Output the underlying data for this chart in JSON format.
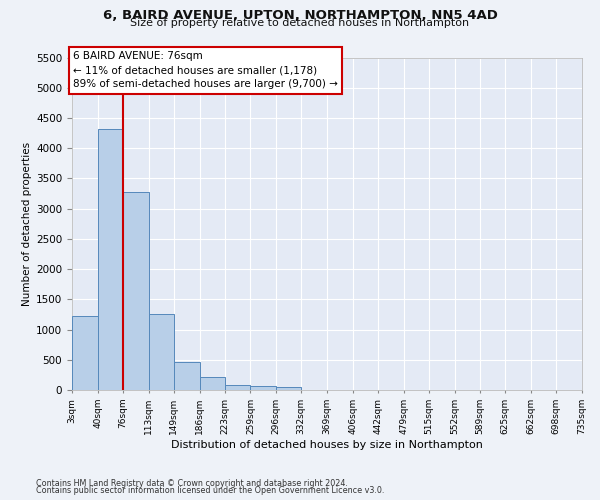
{
  "title1": "6, BAIRD AVENUE, UPTON, NORTHAMPTON, NN5 4AD",
  "title2": "Size of property relative to detached houses in Northampton",
  "xlabel": "Distribution of detached houses by size in Northampton",
  "ylabel": "Number of detached properties",
  "footnote1": "Contains HM Land Registry data © Crown copyright and database right 2024.",
  "footnote2": "Contains public sector information licensed under the Open Government Licence v3.0.",
  "annotation_title": "6 BAIRD AVENUE: 76sqm",
  "annotation_line1": "← 11% of detached houses are smaller (1,178)",
  "annotation_line2": "89% of semi-detached houses are larger (9,700) →",
  "bar_color": "#b8cfe8",
  "bar_edge_color": "#5588bb",
  "red_line_x": 76,
  "categories": [
    "3sqm",
    "40sqm",
    "76sqm",
    "113sqm",
    "149sqm",
    "186sqm",
    "223sqm",
    "259sqm",
    "296sqm",
    "332sqm",
    "369sqm",
    "406sqm",
    "442sqm",
    "479sqm",
    "515sqm",
    "552sqm",
    "589sqm",
    "625sqm",
    "662sqm",
    "698sqm",
    "735sqm"
  ],
  "bin_edges": [
    3,
    40,
    76,
    113,
    149,
    186,
    223,
    259,
    296,
    332,
    369,
    406,
    442,
    479,
    515,
    552,
    589,
    625,
    662,
    698,
    735
  ],
  "values": [
    1220,
    4320,
    3280,
    1260,
    470,
    215,
    90,
    65,
    50,
    0,
    0,
    0,
    0,
    0,
    0,
    0,
    0,
    0,
    0,
    0
  ],
  "ylim": [
    0,
    5500
  ],
  "yticks": [
    0,
    500,
    1000,
    1500,
    2000,
    2500,
    3000,
    3500,
    4000,
    4500,
    5000,
    5500
  ],
  "background_color": "#eef2f8",
  "plot_bg_color": "#e4eaf5"
}
